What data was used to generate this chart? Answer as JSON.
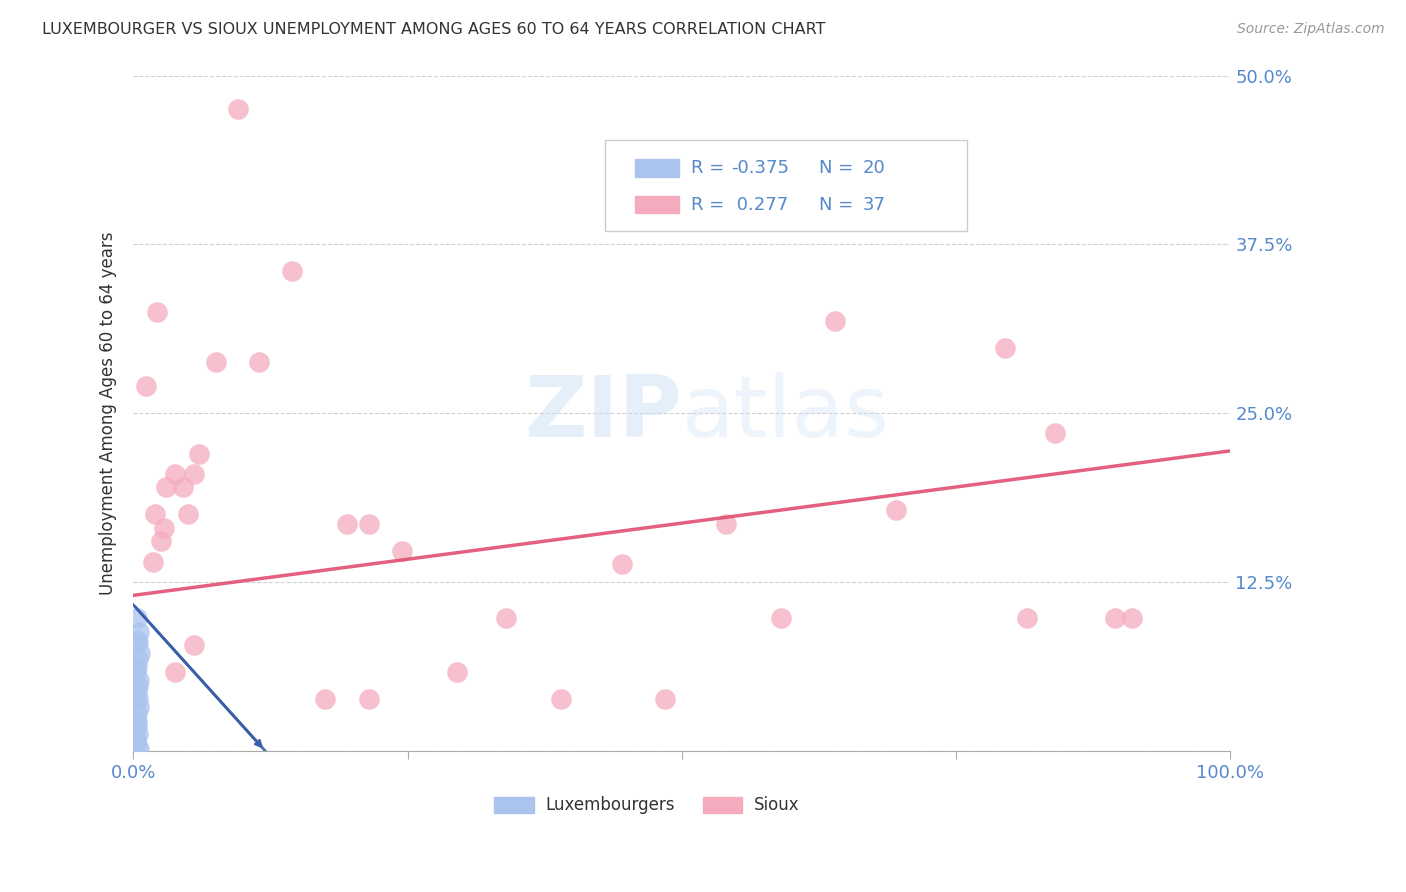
{
  "title": "LUXEMBOURGER VS SIOUX UNEMPLOYMENT AMONG AGES 60 TO 64 YEARS CORRELATION CHART",
  "source": "Source: ZipAtlas.com",
  "ylabel": "Unemployment Among Ages 60 to 64 years",
  "xlim": [
    0,
    1.0
  ],
  "ylim": [
    0,
    0.5
  ],
  "xticks": [
    0.0,
    0.25,
    0.5,
    0.75,
    1.0
  ],
  "xticklabels": [
    "0.0%",
    "",
    "",
    "",
    "100.0%"
  ],
  "ytick_vals": [
    0.0,
    0.125,
    0.25,
    0.375,
    0.5
  ],
  "ytick_labels": [
    "",
    "12.5%",
    "25.0%",
    "37.5%",
    "50.0%"
  ],
  "watermark": "ZIPatlas",
  "luxembourger_color": "#aac4ee",
  "sioux_color": "#f5abbe",
  "luxembourger_line_color": "#3a5faa",
  "sioux_line_color": "#e05070",
  "label_color": "#5588cc",
  "luxembourger_x": [
    0.003,
    0.005,
    0.004,
    0.003,
    0.006,
    0.004,
    0.003,
    0.002,
    0.005,
    0.004,
    0.003,
    0.004,
    0.005,
    0.003,
    0.003,
    0.003,
    0.004,
    0.002,
    0.003,
    0.005
  ],
  "luxembourger_y": [
    0.098,
    0.088,
    0.08,
    0.082,
    0.072,
    0.068,
    0.062,
    0.058,
    0.052,
    0.048,
    0.043,
    0.038,
    0.032,
    0.028,
    0.022,
    0.018,
    0.012,
    0.008,
    0.004,
    0.001
  ],
  "sioux_x": [
    0.018,
    0.025,
    0.03,
    0.038,
    0.022,
    0.012,
    0.02,
    0.028,
    0.045,
    0.055,
    0.06,
    0.05,
    0.038,
    0.055,
    0.215,
    0.195,
    0.175,
    0.215,
    0.34,
    0.39,
    0.485,
    0.59,
    0.54,
    0.64,
    0.795,
    0.84,
    0.895,
    0.91,
    0.095,
    0.145,
    0.115,
    0.075,
    0.295,
    0.245,
    0.445,
    0.695,
    0.815
  ],
  "sioux_y": [
    0.14,
    0.155,
    0.195,
    0.205,
    0.325,
    0.27,
    0.175,
    0.165,
    0.195,
    0.205,
    0.22,
    0.175,
    0.058,
    0.078,
    0.168,
    0.168,
    0.038,
    0.038,
    0.098,
    0.038,
    0.038,
    0.098,
    0.168,
    0.318,
    0.298,
    0.235,
    0.098,
    0.098,
    0.475,
    0.355,
    0.288,
    0.288,
    0.058,
    0.148,
    0.138,
    0.178,
    0.098
  ],
  "lux_trend_x": [
    0.0,
    0.12
  ],
  "lux_trend_y": [
    0.108,
    0.0
  ],
  "sioux_trend_x": [
    0.0,
    1.0
  ],
  "sioux_trend_y": [
    0.115,
    0.222
  ],
  "legend_items": [
    {
      "label": "R = -0.375   N = 20",
      "color": "#aac4ee"
    },
    {
      "label": "R =  0.277   N = 37",
      "color": "#f5abbe"
    }
  ],
  "bottom_legend": [
    {
      "label": "Luxembourgers",
      "color": "#aac4ee"
    },
    {
      "label": "Sioux",
      "color": "#f5abbe"
    }
  ]
}
